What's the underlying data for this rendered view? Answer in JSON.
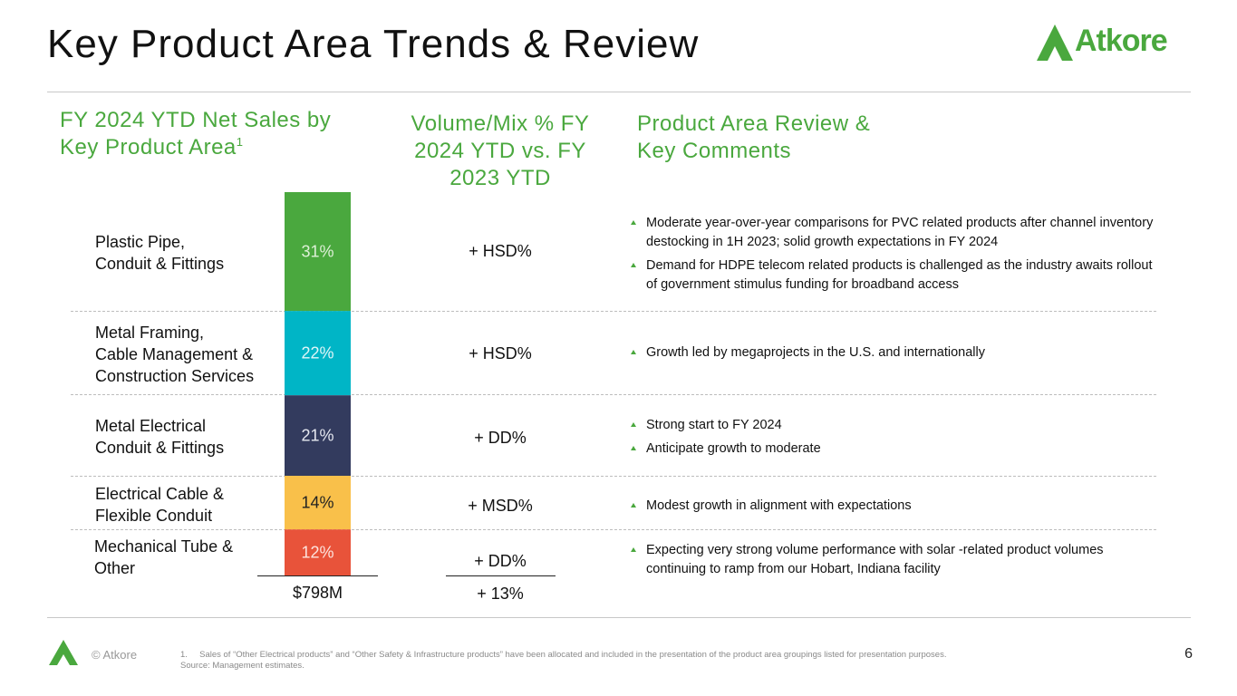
{
  "page": {
    "title": "Key Product Area Trends & Review",
    "page_number": "6"
  },
  "logo": {
    "text": "Atkore"
  },
  "headers": {
    "net_sales": "FY 2024 YTD Net Sales by Key Product Area",
    "net_sales_sup": "1",
    "volume_mix": "Volume/Mix % FY 2024 YTD vs. FY 2023 YTD",
    "review": "Product Area Review & Key Comments"
  },
  "chart_data": {
    "type": "bar",
    "subtype": "stacked-100",
    "title": "FY 2024 YTD Net Sales by Key Product Area",
    "categories": [
      "Plastic Pipe,\nConduit & Fittings",
      "Metal Framing,\nCable Management &\nConstruction Services",
      "Metal Electrical\nConduit & Fittings",
      "Electrical Cable &\nFlexible Conduit",
      "Mechanical Tube &\nOther"
    ],
    "values": [
      31,
      22,
      21,
      14,
      12
    ],
    "value_labels": [
      "31%",
      "22%",
      "21%",
      "14%",
      "12%"
    ],
    "colors": [
      "#4aa83e",
      "#00b5c6",
      "#333b5e",
      "#f9c04a",
      "#e8533a"
    ],
    "label_colors": [
      "#dff0d8",
      "#e0f6f8",
      "#e6e8f0",
      "#222222",
      "#fde4de"
    ],
    "total_label": "$798M",
    "ylim": [
      0,
      100
    ]
  },
  "volume_mix": {
    "values": [
      "+ HSD%",
      "+ HSD%",
      "+ DD%",
      "+ MSD%",
      "+ DD%"
    ],
    "total": "+ 13%"
  },
  "comments": [
    [
      "Moderate year-over-year comparisons for PVC related products after channel inventory destocking in 1H 2023; solid growth expectations in FY 2024",
      "Demand for HDPE telecom related products is challenged as the industry awaits rollout of government stimulus funding for broadband access"
    ],
    [
      "Growth led by megaprojects in the U.S. and internationally"
    ],
    [
      "Strong start to FY 2024",
      "Anticipate growth to moderate"
    ],
    [
      "Modest growth in alignment with expectations"
    ],
    [
      "Expecting very strong volume performance with solar -related product volumes continuing to ramp from our Hobart, Indiana facility"
    ]
  ],
  "footer": {
    "copyright": "© Atkore",
    "footnote_1": "1.     Sales of “Other Electrical products” and “Other Safety & Infrastructure products” have been allocated and included in the presentation of the product area groupings listed for presentation purposes.",
    "source": "Source: Management estimates."
  }
}
